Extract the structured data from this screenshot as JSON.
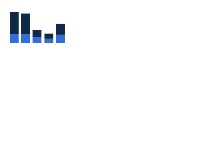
{
  "chart_data": {
    "type": "stacked-bar",
    "categories": [
      null,
      null,
      null,
      null,
      null
    ],
    "series": [
      {
        "color": "#2f6fd6",
        "values": [
          25,
          24,
          16,
          13,
          22
        ]
      },
      {
        "color": "#0f2a47",
        "values": [
          58,
          55,
          20,
          13,
          29
        ]
      }
    ],
    "ylim": [
      0,
      100
    ]
  }
}
